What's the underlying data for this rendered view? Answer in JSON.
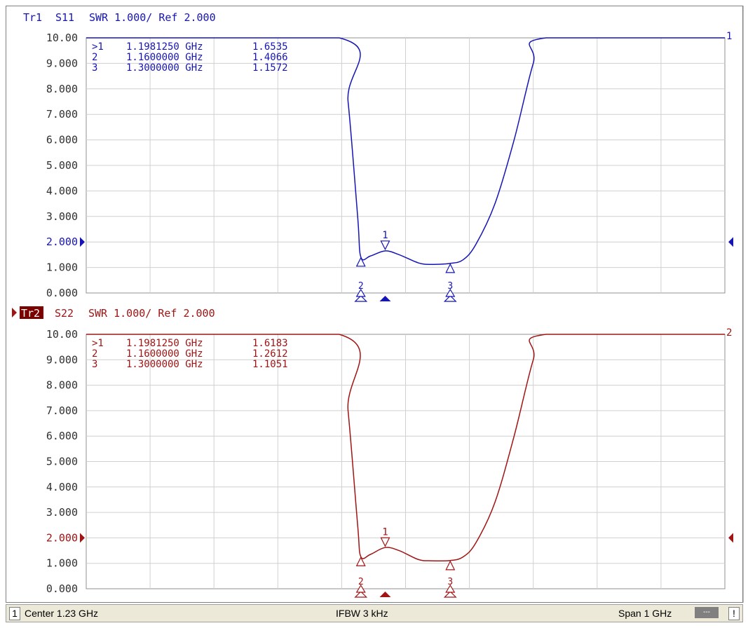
{
  "colors": {
    "trace1": "#1515b5",
    "trace2": "#a01414",
    "grid": "#d0d0d0",
    "axis_text": "#303030",
    "active_badge_bg": "#7a0000"
  },
  "traces": [
    {
      "id": "tr1",
      "header": {
        "name": "Tr1",
        "param": "S11",
        "info": "SWR 1.000/ Ref 2.000"
      },
      "end_label": "1",
      "markers": [
        {
          "id": ">1",
          "freq": "1.1981250 GHz",
          "value": "1.6535"
        },
        {
          "id": "2",
          "freq": "1.1600000 GHz",
          "value": "1.4066"
        },
        {
          "id": "3",
          "freq": "1.3000000 GHz",
          "value": "1.1572"
        }
      ]
    },
    {
      "id": "tr2",
      "header": {
        "name": "Tr2",
        "param": "S22",
        "info": "SWR 1.000/ Ref 2.000"
      },
      "end_label": "2",
      "markers": [
        {
          "id": ">1",
          "freq": "1.1981250 GHz",
          "value": "1.6183"
        },
        {
          "id": "2",
          "freq": "1.1600000 GHz",
          "value": "1.2612"
        },
        {
          "id": "3",
          "freq": "1.3000000 GHz",
          "value": "1.1051"
        }
      ]
    }
  ],
  "status": {
    "channel": "1",
    "center": "Center 1.23 GHz",
    "ifbw": "IFBW 3 kHz",
    "span": "Span 1 GHz",
    "indicator": "---",
    "alert": "!"
  },
  "chart_data": [
    {
      "type": "line",
      "title": "Tr1 S11 SWR 1.000/ Ref 2.000",
      "x_center_ghz": 1.23,
      "x_span_ghz": 1.0,
      "xlim": [
        0.73,
        1.73
      ],
      "ylim": [
        0,
        10
      ],
      "y_ticks": [
        "10.00",
        "9.000",
        "8.000",
        "7.000",
        "6.000",
        "5.000",
        "4.000",
        "3.000",
        "2.000",
        "1.000",
        "0.000"
      ],
      "reference_value": 2.0,
      "grid": true,
      "series": [
        {
          "name": "S11",
          "x": [
            0.73,
            1.126,
            1.14,
            1.155,
            1.16,
            1.175,
            1.198,
            1.22,
            1.25,
            1.27,
            1.3,
            1.32,
            1.34,
            1.37,
            1.4,
            1.43,
            1.45,
            1.73
          ],
          "y": [
            10,
            10,
            7.5,
            3.0,
            1.41,
            1.45,
            1.65,
            1.5,
            1.18,
            1.12,
            1.16,
            1.3,
            1.9,
            3.5,
            6.0,
            9.0,
            10,
            10
          ]
        }
      ],
      "markers": [
        {
          "label": "1",
          "x": 1.198125,
          "y": 1.6535
        },
        {
          "label": "2",
          "x": 1.16,
          "y": 1.4066
        },
        {
          "label": "3",
          "x": 1.3,
          "y": 1.1572
        }
      ]
    },
    {
      "type": "line",
      "title": "Tr2 S22 SWR 1.000/ Ref 2.000",
      "x_center_ghz": 1.23,
      "x_span_ghz": 1.0,
      "xlim": [
        0.73,
        1.73
      ],
      "ylim": [
        0,
        10
      ],
      "y_ticks": [
        "10.00",
        "9.000",
        "8.000",
        "7.000",
        "6.000",
        "5.000",
        "4.000",
        "3.000",
        "2.000",
        "1.000",
        "0.000"
      ],
      "reference_value": 2.0,
      "grid": true,
      "series": [
        {
          "name": "S22",
          "x": [
            0.73,
            1.126,
            1.14,
            1.155,
            1.16,
            1.175,
            1.198,
            1.22,
            1.25,
            1.27,
            1.3,
            1.32,
            1.34,
            1.37,
            1.4,
            1.43,
            1.45,
            1.73
          ],
          "y": [
            10,
            10,
            7.0,
            2.5,
            1.26,
            1.35,
            1.62,
            1.5,
            1.15,
            1.1,
            1.11,
            1.25,
            1.8,
            3.4,
            6.0,
            9.0,
            10,
            10
          ]
        }
      ],
      "markers": [
        {
          "label": "1",
          "x": 1.198125,
          "y": 1.6183
        },
        {
          "label": "2",
          "x": 1.16,
          "y": 1.2612
        },
        {
          "label": "3",
          "x": 1.3,
          "y": 1.1051
        }
      ]
    }
  ]
}
